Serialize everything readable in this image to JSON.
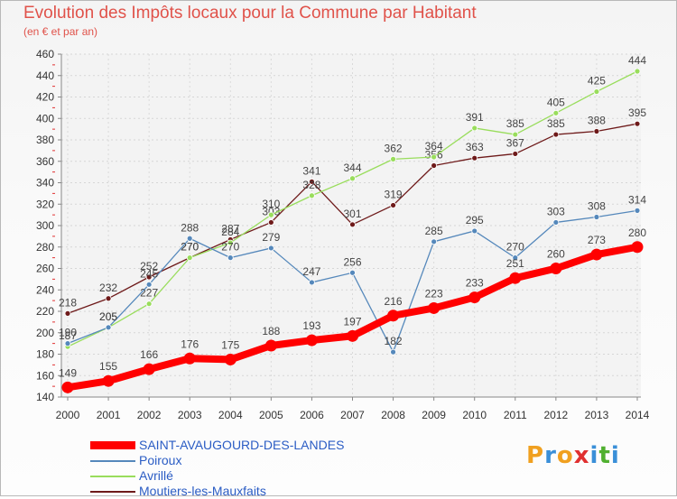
{
  "header": {
    "title": "Evolution des Impôts locaux pour la Commune par Habitant",
    "subtitle": "(en € et par an)"
  },
  "logo": {
    "text": "Proxiti",
    "letters": [
      "P",
      "r",
      "o",
      "x",
      "i",
      "t",
      "i"
    ],
    "colors": [
      "#f0a020",
      "#3a8fd8",
      "#f0a020",
      "#e03030",
      "#3a8fd8",
      "#50b030",
      "#3a8fd8"
    ]
  },
  "chart_data": {
    "type": "line",
    "title": "Evolution des Impôts locaux pour la Commune par Habitant",
    "xlabel": "",
    "ylabel": "",
    "ylim": [
      140,
      460
    ],
    "yticks": [
      140,
      160,
      180,
      200,
      220,
      240,
      260,
      280,
      300,
      320,
      340,
      360,
      380,
      400,
      420,
      440,
      460
    ],
    "grid": true,
    "legend_position": "bottom",
    "x": [
      "2000",
      "2001",
      "2002",
      "2003",
      "2004",
      "2005",
      "2006",
      "2007",
      "2008",
      "2009",
      "2010",
      "2011",
      "2012",
      "2013",
      "2014"
    ],
    "series": [
      {
        "name": "Moutiers-les-Mauxfaits",
        "color": "#6e1a1a",
        "values": [
          218,
          232,
          252,
          270,
          287,
          303,
          341,
          301,
          319,
          356,
          363,
          367,
          385,
          388,
          395
        ]
      },
      {
        "name": "Avrillé",
        "color": "#99dd5c",
        "values": [
          187,
          205,
          227,
          270,
          284,
          310,
          328,
          344,
          362,
          364,
          391,
          385,
          405,
          425,
          444
        ]
      },
      {
        "name": "Poiroux",
        "color": "#5588bb",
        "values": [
          190,
          205,
          245,
          288,
          270,
          279,
          247,
          256,
          182,
          285,
          295,
          270,
          303,
          308,
          314
        ]
      },
      {
        "name": "SAINT-AVAUGOURD-DES-LANDES",
        "color": "#ff0000",
        "values": [
          149,
          155,
          166,
          176,
          175,
          188,
          193,
          197,
          216,
          223,
          233,
          251,
          260,
          273,
          280
        ]
      }
    ],
    "label_values": {
      "Moutiers-les-Mauxfaits": [
        "218",
        "232",
        "252",
        "270",
        "287",
        "303",
        "341",
        "301",
        "319",
        "356",
        "363",
        "367",
        "385",
        "388",
        "395"
      ],
      "Avrillé": [
        "187",
        "205",
        "227",
        "270",
        "284",
        "310",
        "328",
        "344",
        "362",
        "364",
        "391",
        "385",
        "405",
        "425",
        "444"
      ],
      "Poiroux": [
        "190",
        "205",
        "245",
        "288",
        "270",
        "279",
        "247",
        "256",
        "182",
        "285",
        "295",
        "270",
        "303",
        "308",
        "314"
      ],
      "SAINT-AVAUGOURD-DES-LANDES": [
        "149",
        "155",
        "166",
        "176",
        "175",
        "188",
        "193",
        "197",
        "216",
        "223",
        "233",
        "251",
        "260",
        "273",
        "280"
      ]
    }
  }
}
